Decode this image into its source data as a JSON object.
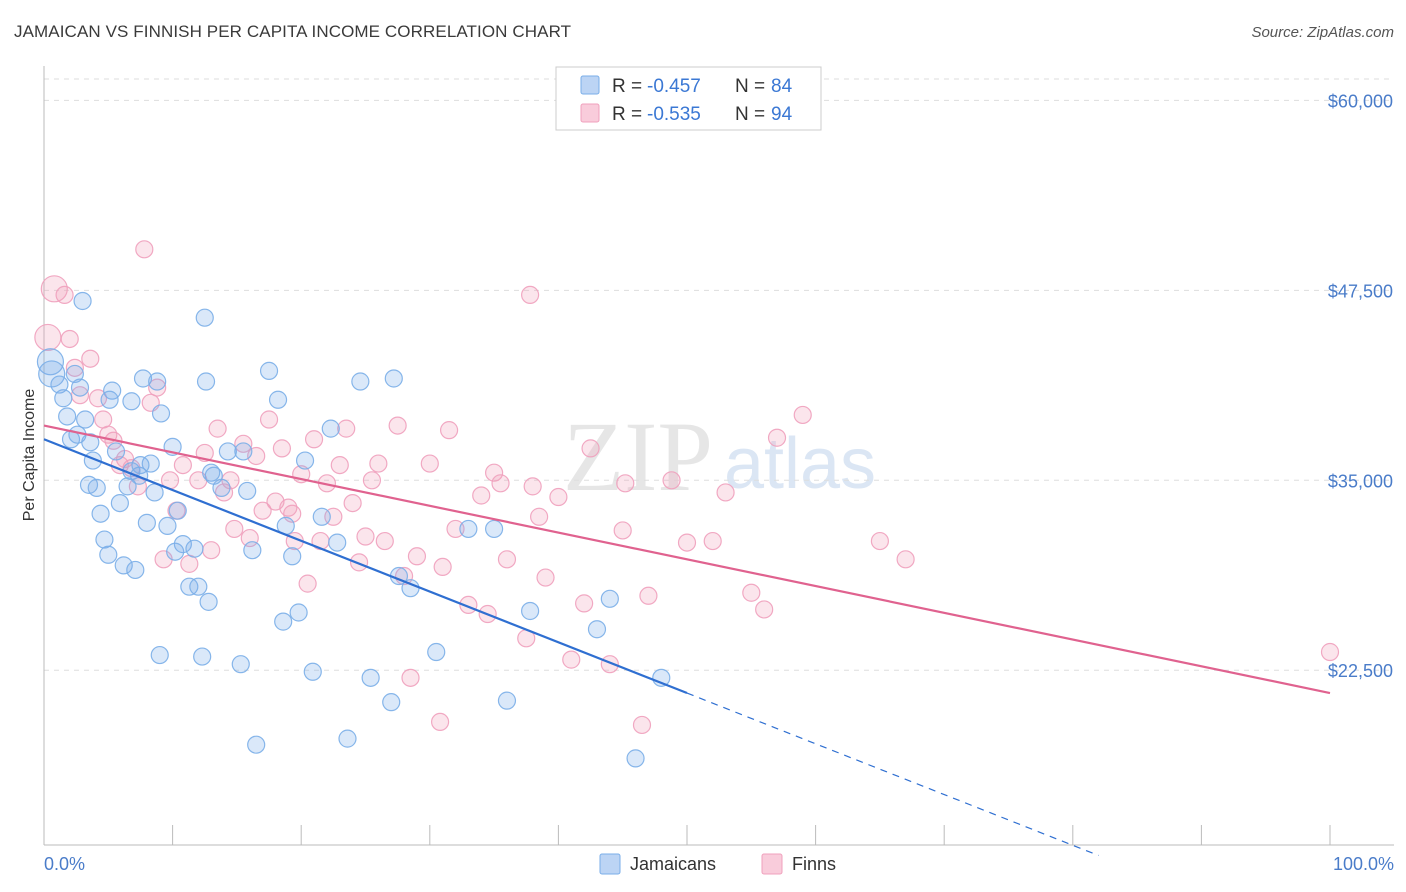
{
  "header": {
    "title": "JAMAICAN VS FINNISH PER CAPITA INCOME CORRELATION CHART",
    "source": "Source: ZipAtlas.com"
  },
  "watermark": {
    "zip": "ZIP",
    "atlas": "atlas"
  },
  "colors": {
    "jamaicans": "#7aaee8",
    "jamaicans_line": "#2f6fd1",
    "finns": "#f0a0bc",
    "finns_line": "#e0628f",
    "tick": "#4a7cc9",
    "grid": "#dddddd"
  },
  "legend": {
    "rows": [
      {
        "name": "Jamaicans",
        "r_label": "R =",
        "r_value": "-0.457",
        "n_label": "N =",
        "n_value": "84"
      },
      {
        "name": "Finns",
        "r_label": "R =",
        "r_value": "-0.535",
        "n_label": "N =",
        "n_value": "94"
      }
    ]
  },
  "chart_data": {
    "type": "scatter",
    "title": "JAMAICAN VS FINNISH PER CAPITA INCOME CORRELATION CHART",
    "xlabel": "",
    "ylabel": "Per Capita Income",
    "xlim": [
      0,
      100
    ],
    "ylim": [
      11000,
      62000
    ],
    "x_tick_labels": [
      "0.0%",
      "100.0%"
    ],
    "y_ticks": [
      {
        "value": 60000,
        "label": "$60,000"
      },
      {
        "value": 47500,
        "label": "$47,500"
      },
      {
        "value": 35000,
        "label": "$35,000"
      },
      {
        "value": 22500,
        "label": "$22,500"
      }
    ],
    "series": [
      {
        "name": "Jamaicans",
        "trend": {
          "x0": 0,
          "y0": 37700,
          "x1": 50,
          "y1": 21000,
          "dashed_to_x": 82
        },
        "points": [
          [
            0.5,
            42800
          ],
          [
            0.6,
            42000
          ],
          [
            1.2,
            41300
          ],
          [
            1.5,
            40400
          ],
          [
            1.8,
            39200
          ],
          [
            2.1,
            37700
          ],
          [
            2.4,
            42000
          ],
          [
            2.6,
            38000
          ],
          [
            2.8,
            41100
          ],
          [
            3.2,
            39000
          ],
          [
            3.5,
            34700
          ],
          [
            3.8,
            36300
          ],
          [
            4.1,
            34500
          ],
          [
            4.4,
            32800
          ],
          [
            4.7,
            31100
          ],
          [
            5.0,
            30100
          ],
          [
            5.3,
            40900
          ],
          [
            5.6,
            36900
          ],
          [
            5.9,
            33500
          ],
          [
            6.2,
            29400
          ],
          [
            6.5,
            34600
          ],
          [
            6.8,
            35600
          ],
          [
            7.1,
            29100
          ],
          [
            7.4,
            35300
          ],
          [
            7.7,
            41700
          ],
          [
            8.0,
            32200
          ],
          [
            8.3,
            36100
          ],
          [
            8.6,
            34200
          ],
          [
            9.1,
            39400
          ],
          [
            9.6,
            32000
          ],
          [
            10.0,
            37200
          ],
          [
            10.4,
            33000
          ],
          [
            10.8,
            30800
          ],
          [
            11.3,
            28000
          ],
          [
            11.7,
            30500
          ],
          [
            12.5,
            45700
          ],
          [
            12.8,
            27000
          ],
          [
            13.2,
            35300
          ],
          [
            13.8,
            34500
          ],
          [
            14.3,
            36900
          ],
          [
            15.3,
            22900
          ],
          [
            15.8,
            34300
          ],
          [
            16.5,
            17600
          ],
          [
            17.5,
            42200
          ],
          [
            18.2,
            40300
          ],
          [
            18.8,
            32000
          ],
          [
            19.3,
            30000
          ],
          [
            19.8,
            26300
          ],
          [
            20.3,
            36300
          ],
          [
            20.9,
            22400
          ],
          [
            21.6,
            32600
          ],
          [
            22.3,
            38400
          ],
          [
            22.8,
            30900
          ],
          [
            23.6,
            18000
          ],
          [
            24.6,
            41500
          ],
          [
            25.4,
            22000
          ],
          [
            27.2,
            41700
          ],
          [
            27.6,
            28700
          ],
          [
            28.5,
            27900
          ],
          [
            30.5,
            23700
          ],
          [
            33.0,
            31800
          ],
          [
            35.0,
            31800
          ],
          [
            36.0,
            20500
          ],
          [
            37.8,
            26400
          ],
          [
            43.0,
            25200
          ],
          [
            44.0,
            27200
          ],
          [
            46.0,
            16700
          ],
          [
            48.0,
            22000
          ],
          [
            12.0,
            28000
          ],
          [
            9.0,
            23500
          ],
          [
            12.3,
            23400
          ],
          [
            16.2,
            30400
          ],
          [
            5.1,
            40300
          ],
          [
            3.0,
            46800
          ],
          [
            6.8,
            40200
          ],
          [
            10.2,
            30300
          ],
          [
            7.5,
            36000
          ],
          [
            12.6,
            41500
          ],
          [
            18.6,
            25700
          ],
          [
            15.5,
            36900
          ],
          [
            8.8,
            41500
          ],
          [
            13.0,
            35500
          ],
          [
            27.0,
            20400
          ],
          [
            3.6,
            37500
          ]
        ]
      },
      {
        "name": "Finns",
        "trend": {
          "x0": 0,
          "y0": 38600,
          "x1": 100,
          "y1": 21000
        },
        "points": [
          [
            0.3,
            44400
          ],
          [
            0.8,
            47600
          ],
          [
            1.6,
            47200
          ],
          [
            2.0,
            44300
          ],
          [
            2.4,
            42400
          ],
          [
            2.8,
            40600
          ],
          [
            3.6,
            43000
          ],
          [
            4.2,
            40400
          ],
          [
            4.6,
            39000
          ],
          [
            5.0,
            38000
          ],
          [
            5.4,
            37600
          ],
          [
            5.9,
            36000
          ],
          [
            6.3,
            36400
          ],
          [
            6.8,
            35800
          ],
          [
            7.3,
            34600
          ],
          [
            7.8,
            50200
          ],
          [
            8.3,
            40100
          ],
          [
            8.8,
            41100
          ],
          [
            9.3,
            29800
          ],
          [
            9.8,
            35000
          ],
          [
            10.3,
            33000
          ],
          [
            10.8,
            36000
          ],
          [
            11.3,
            29500
          ],
          [
            12.0,
            35000
          ],
          [
            12.5,
            36800
          ],
          [
            13.0,
            30400
          ],
          [
            13.5,
            38400
          ],
          [
            14.0,
            34200
          ],
          [
            14.5,
            35000
          ],
          [
            15.5,
            37400
          ],
          [
            16.0,
            31200
          ],
          [
            16.5,
            36600
          ],
          [
            17.0,
            33000
          ],
          [
            17.5,
            39000
          ],
          [
            18.0,
            33600
          ],
          [
            18.5,
            37100
          ],
          [
            19.0,
            33200
          ],
          [
            19.5,
            31000
          ],
          [
            20.0,
            35400
          ],
          [
            20.5,
            28200
          ],
          [
            21.0,
            37700
          ],
          [
            21.5,
            31000
          ],
          [
            22.0,
            34800
          ],
          [
            22.5,
            32600
          ],
          [
            23.0,
            36000
          ],
          [
            23.5,
            38400
          ],
          [
            24.0,
            33500
          ],
          [
            24.5,
            29600
          ],
          [
            25.0,
            31300
          ],
          [
            25.5,
            35000
          ],
          [
            26.0,
            36100
          ],
          [
            26.5,
            31000
          ],
          [
            27.5,
            38600
          ],
          [
            28.0,
            28700
          ],
          [
            28.5,
            22000
          ],
          [
            29.0,
            30000
          ],
          [
            30.0,
            36100
          ],
          [
            31.0,
            29300
          ],
          [
            31.5,
            38300
          ],
          [
            32.0,
            31800
          ],
          [
            33.0,
            26800
          ],
          [
            34.0,
            34000
          ],
          [
            34.5,
            26200
          ],
          [
            35.0,
            35500
          ],
          [
            36.0,
            29800
          ],
          [
            37.5,
            24600
          ],
          [
            37.8,
            47200
          ],
          [
            38.0,
            34600
          ],
          [
            38.5,
            32600
          ],
          [
            39.0,
            28600
          ],
          [
            40.0,
            33900
          ],
          [
            41.0,
            23200
          ],
          [
            42.0,
            26900
          ],
          [
            42.5,
            37100
          ],
          [
            44.0,
            22900
          ],
          [
            45.0,
            31700
          ],
          [
            47.0,
            27400
          ],
          [
            50.0,
            30900
          ],
          [
            52.0,
            31000
          ],
          [
            53.0,
            34200
          ],
          [
            55.0,
            27600
          ],
          [
            56.0,
            26500
          ],
          [
            57.0,
            37800
          ],
          [
            59.0,
            39300
          ],
          [
            65.0,
            31000
          ],
          [
            67.0,
            29800
          ],
          [
            100.0,
            23700
          ],
          [
            46.5,
            18900
          ],
          [
            30.8,
            19100
          ],
          [
            48.8,
            35000
          ],
          [
            19.3,
            32800
          ],
          [
            14.8,
            31800
          ],
          [
            35.5,
            34800
          ],
          [
            45.2,
            34800
          ]
        ]
      }
    ]
  },
  "bottom_legend": {
    "items": [
      "Jamaicans",
      "Finns"
    ]
  }
}
